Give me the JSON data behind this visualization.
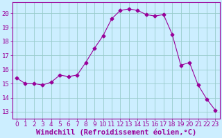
{
  "x": [
    0,
    1,
    2,
    3,
    4,
    5,
    6,
    7,
    8,
    9,
    10,
    11,
    12,
    13,
    14,
    15,
    16,
    17,
    18,
    19,
    20,
    21,
    22,
    23
  ],
  "y": [
    15.4,
    15.0,
    15.0,
    14.9,
    15.1,
    15.6,
    15.5,
    15.6,
    16.5,
    17.5,
    18.4,
    19.6,
    20.2,
    20.3,
    20.2,
    19.9,
    19.8,
    19.9,
    18.5,
    16.3,
    16.5,
    14.9,
    13.9,
    13.1
  ],
  "line_color": "#990099",
  "marker": "D",
  "marker_size": 2.5,
  "bg_color": "#cceeff",
  "grid_color": "#99cccc",
  "xlabel": "Windchill (Refroidissement éolien,°C)",
  "ylim": [
    12.5,
    20.8
  ],
  "xlim": [
    -0.5,
    23.5
  ],
  "yticks": [
    13,
    14,
    15,
    16,
    17,
    18,
    19,
    20
  ],
  "xticks": [
    0,
    1,
    2,
    3,
    4,
    5,
    6,
    7,
    8,
    9,
    10,
    11,
    12,
    13,
    14,
    15,
    16,
    17,
    18,
    19,
    20,
    21,
    22,
    23
  ],
  "tick_color": "#990099",
  "tick_label_size": 6.5,
  "xlabel_size": 7.5,
  "xlabel_color": "#990099",
  "spine_color": "#990099"
}
